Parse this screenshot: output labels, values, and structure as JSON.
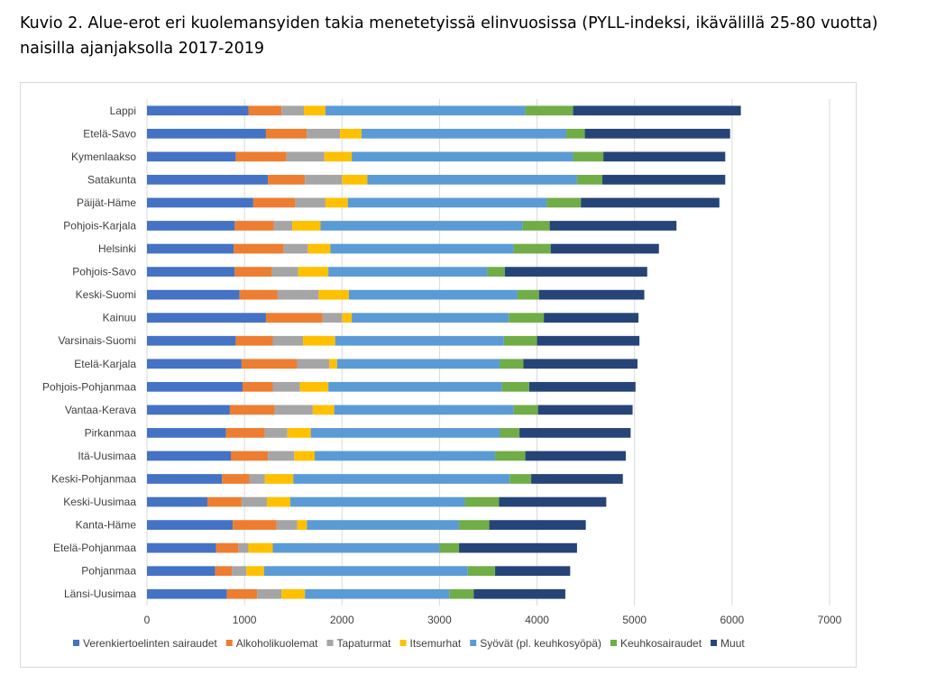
{
  "title": "Kuvio 2. Alue-erot eri kuolemansyiden takia menetetyissä elinvuosissa (PYLL-indeksi, ikävälillä 25-80 vuotta) naisilla ajanjaksolla 2017-2019",
  "chart_data": {
    "type": "bar",
    "orientation": "horizontal",
    "stacked": true,
    "xlim": [
      0,
      7000
    ],
    "xticks": [
      "0",
      "1000",
      "2000",
      "3000",
      "4000",
      "5000",
      "6000",
      "7000"
    ],
    "grid": true,
    "legend_position": "bottom",
    "categories": [
      "Lappi",
      "Etelä-Savo",
      "Kymenlaakso",
      "Satakunta",
      "Päijät-Häme",
      "Pohjois-Karjala",
      "Helsinki",
      "Pohjois-Savo",
      "Keski-Suomi",
      "Kainuu",
      "Varsinais-Suomi",
      "Etelä-Karjala",
      "Pohjois-Pohjanmaa",
      "Vantaa-Kerava",
      "Pirkanmaa",
      "Itä-Uusimaa",
      "Keski-Pohjanmaa",
      "Keski-Uusimaa",
      "Kanta-Häme",
      "Etelä-Pohjanmaa",
      "Pohjanmaa",
      "Länsi-Uusimaa"
    ],
    "series": [
      {
        "name": "Verenkiertoelinten sairaudet",
        "color": "#4472C4",
        "values": [
          1040,
          1220,
          910,
          1240,
          1090,
          900,
          890,
          900,
          950,
          1220,
          910,
          970,
          980,
          850,
          810,
          860,
          770,
          620,
          880,
          710,
          700,
          820
        ]
      },
      {
        "name": "Alkoholikuolemat",
        "color": "#ED7D31",
        "values": [
          340,
          420,
          520,
          380,
          430,
          400,
          510,
          380,
          390,
          580,
          380,
          570,
          310,
          460,
          400,
          380,
          280,
          350,
          450,
          230,
          170,
          310
        ]
      },
      {
        "name": "Tapaturmat",
        "color": "#A5A5A5",
        "values": [
          230,
          340,
          390,
          380,
          310,
          190,
          250,
          270,
          420,
          200,
          310,
          330,
          280,
          390,
          230,
          270,
          160,
          260,
          210,
          100,
          150,
          250
        ]
      },
      {
        "name": "Itsemurhat",
        "color": "#FFC000",
        "values": [
          220,
          220,
          280,
          260,
          230,
          290,
          230,
          310,
          310,
          100,
          330,
          80,
          290,
          220,
          240,
          210,
          290,
          240,
          100,
          250,
          180,
          240
        ]
      },
      {
        "name": "Syövät (pl. keuhkosyöpä)",
        "color": "#5B9BD5",
        "values": [
          2050,
          2100,
          2270,
          2150,
          2040,
          2070,
          1880,
          1630,
          1730,
          1610,
          1730,
          1670,
          1780,
          1840,
          1940,
          1850,
          2220,
          1790,
          1560,
          1710,
          2090,
          1480
        ]
      },
      {
        "name": "Keuhkosairaudet",
        "color": "#70AD47",
        "values": [
          490,
          190,
          310,
          260,
          350,
          280,
          380,
          180,
          220,
          360,
          340,
          240,
          280,
          250,
          200,
          310,
          220,
          350,
          310,
          200,
          280,
          250
        ]
      },
      {
        "name": "Muut",
        "color": "#264478",
        "values": [
          1720,
          1490,
          1250,
          1260,
          1420,
          1300,
          1110,
          1460,
          1080,
          970,
          1050,
          1170,
          1090,
          970,
          1140,
          1030,
          940,
          1100,
          990,
          1210,
          770,
          940
        ]
      }
    ]
  }
}
